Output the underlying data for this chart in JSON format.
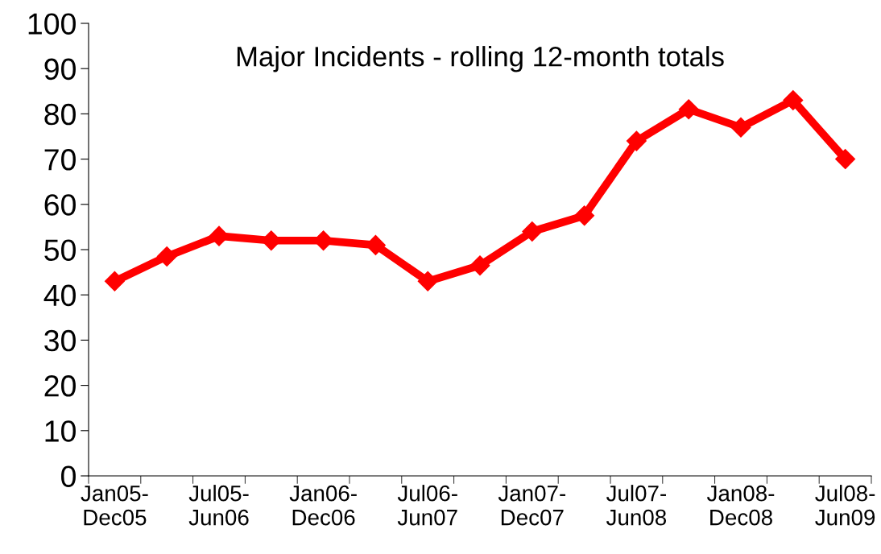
{
  "chart_data": {
    "type": "line",
    "title": "Major Incidents - rolling 12-month totals",
    "categories": [
      "Jan05-Dec05",
      null,
      "Jul05-Jun06",
      null,
      "Jan06-Dec06",
      null,
      "Jul06-Jun07",
      null,
      "Jan07-Dec07",
      null,
      "Jul07-Jun08",
      null,
      "Jan08-Dec08",
      null,
      "Jul08-Jun09"
    ],
    "series": [
      {
        "color": "#ff0000",
        "values": [
          43,
          48.5,
          53,
          52,
          52,
          51,
          43,
          46.5,
          54,
          57.5,
          74,
          81,
          77,
          83,
          70
        ]
      }
    ],
    "ylim": [
      0,
      100
    ],
    "yticks": [
      0,
      10,
      20,
      30,
      40,
      50,
      60,
      70,
      80,
      90,
      100
    ],
    "grid": false,
    "legend": false,
    "marker": "diamond",
    "line_style": "solid"
  }
}
